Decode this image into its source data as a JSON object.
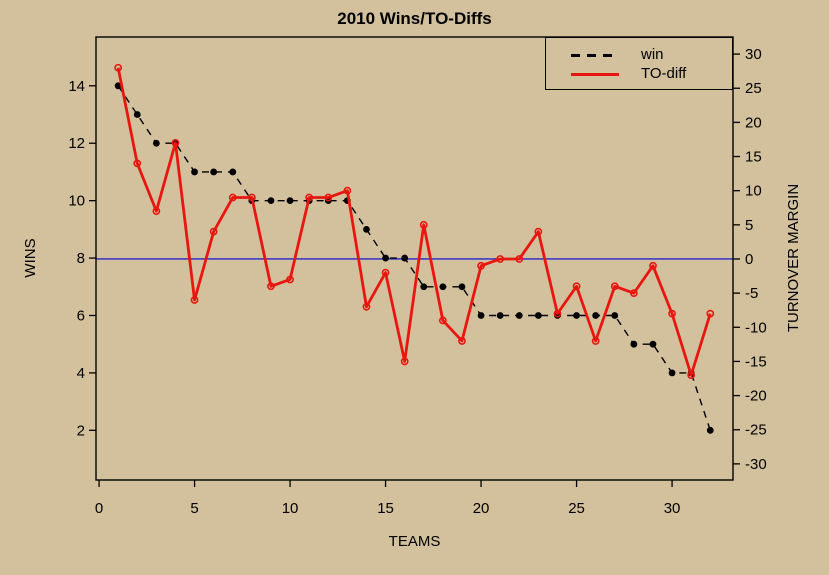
{
  "title": "2010 Wins/TO-Diffs",
  "chart_data": {
    "type": "line",
    "title": "2010 Wins/TO-Diffs",
    "xlabel": "TEAMS",
    "ylabel_left": "WINS",
    "ylabel_right": "TURNOVER MARGIN",
    "grid": false,
    "x": [
      1,
      2,
      3,
      4,
      5,
      6,
      7,
      8,
      9,
      10,
      11,
      12,
      13,
      14,
      15,
      16,
      17,
      18,
      19,
      20,
      21,
      22,
      23,
      24,
      25,
      26,
      27,
      28,
      29,
      30,
      31,
      32
    ],
    "series": [
      {
        "name": "win",
        "axis": "left",
        "color": "#000000",
        "line_style": "dashed",
        "marker": "filled-circle",
        "values": [
          14,
          13,
          12,
          12,
          11,
          11,
          11,
          10,
          10,
          10,
          10,
          10,
          10,
          9,
          8,
          8,
          7,
          7,
          7,
          6,
          6,
          6,
          6,
          6,
          6,
          6,
          6,
          5,
          5,
          4,
          4,
          2
        ]
      },
      {
        "name": "TO-diff",
        "axis": "right",
        "color": "#e8160f",
        "line_style": "solid",
        "marker": "open-circle",
        "values": [
          28,
          14,
          7,
          17,
          -6,
          4,
          9,
          9,
          -4,
          -3,
          9,
          9,
          10,
          -7,
          -2,
          -15,
          5,
          -9,
          -12,
          -1,
          0,
          0,
          4,
          -8,
          -4,
          -12,
          -4,
          -5,
          -1,
          -8,
          -17,
          -8
        ]
      }
    ],
    "x_axis": {
      "ticks": [
        0,
        5,
        10,
        15,
        20,
        25,
        30
      ],
      "range": [
        -0.16,
        33.19
      ]
    },
    "left_axis": {
      "ticks": [
        2,
        4,
        6,
        8,
        10,
        12,
        14
      ],
      "range": [
        0.27,
        15.7
      ]
    },
    "right_axis": {
      "ticks": [
        -30,
        -25,
        -20,
        -15,
        -10,
        -5,
        0,
        5,
        10,
        15,
        20,
        25,
        30
      ],
      "range": [
        -32.36,
        32.5
      ]
    },
    "reference_line": {
      "axis": "right",
      "value": 0,
      "color": "#2424cc"
    },
    "legend": {
      "position": "top-right",
      "entries": [
        "win",
        "TO-diff"
      ]
    },
    "colors": {
      "background": "#d2c19c",
      "win": "#000000",
      "to_diff": "#e8160f",
      "zero_line": "#2424cc",
      "axis": "#000000"
    }
  }
}
